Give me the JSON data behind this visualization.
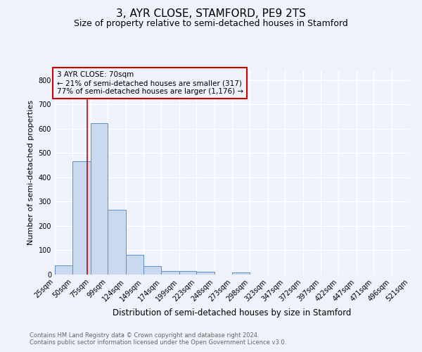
{
  "title": "3, AYR CLOSE, STAMFORD, PE9 2TS",
  "subtitle": "Size of property relative to semi-detached houses in Stamford",
  "xlabel": "Distribution of semi-detached houses by size in Stamford",
  "ylabel": "Number of semi-detached properties",
  "footnote1": "Contains HM Land Registry data © Crown copyright and database right 2024.",
  "footnote2": "Contains public sector information licensed under the Open Government Licence v3.0.",
  "annotation_line1": "3 AYR CLOSE: 70sqm",
  "annotation_line2": "← 21% of semi-detached houses are smaller (317)",
  "annotation_line3": "77% of semi-detached houses are larger (1,176) →",
  "bar_color": "#c9d9f0",
  "bar_edge_color": "#5b8fcc",
  "marker_color": "#cc0000",
  "marker_x": 70,
  "bins_left": [
    25,
    50,
    75,
    99,
    124,
    149,
    174,
    199,
    223,
    248,
    273,
    298,
    323,
    347,
    372,
    397,
    422,
    447,
    471,
    496
  ],
  "bin_widths": [
    25,
    25,
    24,
    25,
    25,
    25,
    25,
    24,
    25,
    25,
    25,
    25,
    24,
    25,
    25,
    25,
    25,
    24,
    25,
    25
  ],
  "heights": [
    37,
    465,
    623,
    267,
    82,
    35,
    15,
    15,
    12,
    0,
    8,
    0,
    0,
    0,
    0,
    0,
    0,
    0,
    0,
    0
  ],
  "tick_labels": [
    "25sqm",
    "50sqm",
    "75sqm",
    "99sqm",
    "124sqm",
    "149sqm",
    "174sqm",
    "199sqm",
    "223sqm",
    "248sqm",
    "273sqm",
    "298sqm",
    "323sqm",
    "347sqm",
    "372sqm",
    "397sqm",
    "422sqm",
    "447sqm",
    "471sqm",
    "496sqm",
    "521sqm"
  ],
  "xlim": [
    25,
    521
  ],
  "ylim": [
    0,
    840
  ],
  "yticks": [
    0,
    100,
    200,
    300,
    400,
    500,
    600,
    700,
    800
  ],
  "bg_color": "#eef2fb",
  "grid_color": "#ffffff",
  "title_fontsize": 11,
  "subtitle_fontsize": 9,
  "annotation_fontsize": 7.5,
  "ylabel_fontsize": 8,
  "xlabel_fontsize": 8.5,
  "tick_fontsize": 7,
  "footnote_fontsize": 6,
  "footnote_color": "#666666"
}
